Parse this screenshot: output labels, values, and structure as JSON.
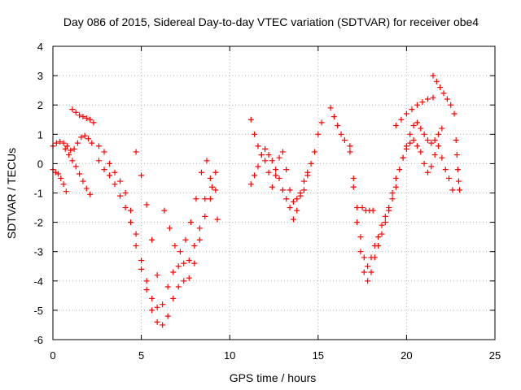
{
  "chart_data": {
    "type": "scatter",
    "title": "Day 086 of 2015, Sidereal Day-to-day VTEC variation (SDTVAR) for receiver obe4",
    "xlabel": "GPS time / hours",
    "ylabel": "SDTVAR / TECUs",
    "xlim": [
      0,
      25
    ],
    "ylim": [
      -6,
      4
    ],
    "xticks": [
      0,
      5,
      10,
      15,
      20,
      25
    ],
    "yticks": [
      -6,
      -5,
      -4,
      -3,
      -2,
      -1,
      0,
      1,
      2,
      3,
      4
    ],
    "xtick_labels": [
      "0",
      "5",
      "10",
      "15",
      "20",
      "25"
    ],
    "ytick_labels": [
      "-6",
      "-5",
      "-4",
      "-3",
      "-2",
      "-1",
      "0",
      "1",
      "2",
      "3",
      "4"
    ],
    "grid": true,
    "marker": "plus",
    "color": "#ff0000",
    "series": [
      {
        "name": "seg-a1",
        "x": [
          0,
          0.2,
          0.4,
          0.6,
          0.8,
          1.0,
          1.2,
          1.4,
          1.6,
          1.8,
          2.0,
          2.2
        ],
        "y": [
          0.6,
          0.7,
          0.75,
          0.7,
          0.6,
          0.45,
          0.5,
          0.7,
          0.9,
          0.95,
          0.85,
          0.7
        ]
      },
      {
        "name": "seg-a2",
        "x": [
          0,
          0.15,
          0.3,
          0.45,
          0.6,
          0.75
        ],
        "y": [
          -0.2,
          -0.3,
          -0.35,
          -0.5,
          -0.7,
          -0.95
        ]
      },
      {
        "name": "seg-a3",
        "x": [
          1.1,
          1.3,
          1.5,
          1.7,
          1.9,
          2.1,
          2.3
        ],
        "y": [
          1.85,
          1.75,
          1.65,
          1.6,
          1.55,
          1.5,
          1.4
        ]
      },
      {
        "name": "seg-a4",
        "x": [
          0.7,
          0.9,
          1.1,
          1.3,
          1.5,
          1.7,
          1.9,
          2.1
        ],
        "y": [
          0.5,
          0.3,
          0.1,
          -0.1,
          -0.35,
          -0.6,
          -0.85,
          -1.05
        ]
      },
      {
        "name": "seg-b1",
        "x": [
          2.6,
          2.9,
          3.2,
          3.5,
          3.8,
          4.1,
          4.4,
          4.7,
          5.0,
          5.3,
          5.6,
          5.9,
          6.2,
          6.5,
          6.8,
          7.1,
          7.4,
          7.7,
          8.0,
          8.3,
          8.6,
          8.9,
          9.2
        ],
        "y": [
          0.6,
          0.4,
          0.0,
          -0.3,
          -0.6,
          -1.0,
          -1.6,
          -2.4,
          -3.3,
          -4.0,
          -4.6,
          -4.9,
          -4.8,
          -4.2,
          -3.7,
          -3.5,
          -3.4,
          -3.3,
          -2.8,
          -2.2,
          -1.2,
          -0.5,
          -0.3
        ]
      },
      {
        "name": "seg-b2",
        "x": [
          2.6,
          2.9,
          3.2,
          3.5,
          3.8,
          4.1,
          4.4,
          4.7,
          5.0,
          5.3,
          5.6,
          5.9,
          6.2,
          6.5,
          6.8,
          7.1,
          7.4,
          7.7,
          8.0,
          8.3,
          8.6,
          8.9,
          9.2
        ],
        "y": [
          0.1,
          -0.2,
          -0.4,
          -0.7,
          -1.1,
          -1.5,
          -2.0,
          -2.8,
          -3.6,
          -4.3,
          -5.0,
          -5.4,
          -5.5,
          -5.2,
          -4.6,
          -4.2,
          -4.0,
          -3.9,
          -3.4,
          -2.6,
          -1.8,
          -1.2,
          -0.9
        ]
      },
      {
        "name": "seg-b3",
        "x": [
          4.7,
          5.0,
          5.3,
          5.6,
          5.9
        ],
        "y": [
          0.4,
          -0.4,
          -1.4,
          -2.6,
          -3.8
        ]
      },
      {
        "name": "seg-b4",
        "x": [
          6.3,
          6.6,
          6.9,
          7.2,
          7.5,
          7.8,
          8.1,
          8.4,
          8.7,
          9.0,
          9.3
        ],
        "y": [
          -1.6,
          -2.2,
          -2.8,
          -3.0,
          -2.6,
          -2.0,
          -1.2,
          -0.3,
          0.1,
          -0.8,
          -1.9
        ]
      },
      {
        "name": "seg-c1",
        "x": [
          11.2,
          11.4,
          11.6,
          11.8,
          12.0,
          12.2,
          12.4,
          12.6,
          12.8,
          13.0,
          13.2,
          13.4,
          13.6,
          13.8,
          14.0,
          14.2,
          14.4,
          14.6,
          14.8,
          15.0,
          15.2
        ],
        "y": [
          1.5,
          1.0,
          0.6,
          0.3,
          0.1,
          0.3,
          0.1,
          -0.2,
          -0.5,
          -0.9,
          -1.2,
          -1.5,
          -1.9,
          -1.6,
          -1.0,
          -0.6,
          -0.3,
          0.0,
          0.4,
          1.0,
          1.4
        ]
      },
      {
        "name": "seg-c2",
        "x": [
          11.2,
          11.4,
          11.6,
          11.8,
          12.0,
          12.2,
          12.4,
          12.6,
          12.8,
          13.0,
          13.2,
          13.4,
          13.6,
          13.8,
          14.0,
          14.2,
          14.4
        ],
        "y": [
          -0.7,
          -0.4,
          -0.1,
          0.3,
          0.5,
          -0.3,
          -0.8,
          -0.4,
          0.2,
          0.4,
          -0.2,
          -0.9,
          -1.3,
          -1.2,
          -1.1,
          -0.9,
          -0.4
        ]
      },
      {
        "name": "seg-d1",
        "x": [
          15.7,
          15.9,
          16.1,
          16.3,
          16.5
        ],
        "y": [
          1.9,
          1.6,
          1.3,
          1.0,
          0.8
        ]
      },
      {
        "name": "seg-d2",
        "x": [
          16.8,
          17.0,
          17.2,
          17.4,
          17.6,
          17.8,
          18.0,
          18.2,
          18.4,
          18.6,
          18.8,
          19.0,
          19.2
        ],
        "y": [
          0.6,
          -0.5,
          -1.5,
          -2.5,
          -3.2,
          -3.5,
          -3.2,
          -2.8,
          -2.5,
          -2.1,
          -1.8,
          -1.5,
          -1.0
        ]
      },
      {
        "name": "seg-d3",
        "x": [
          16.8,
          17.0,
          17.2,
          17.4,
          17.6,
          17.8,
          18.0,
          18.2,
          18.4,
          18.6,
          18.8,
          19.0,
          19.2,
          19.4
        ],
        "y": [
          0.4,
          -0.8,
          -2.0,
          -3.0,
          -3.7,
          -4.0,
          -3.7,
          -3.2,
          -2.8,
          -2.4,
          -2.0,
          -1.6,
          -1.2,
          -0.8
        ]
      },
      {
        "name": "seg-d4",
        "x": [
          17.5,
          17.7,
          17.9,
          18.1
        ],
        "y": [
          -1.5,
          -1.6,
          -1.6,
          -1.6
        ]
      },
      {
        "name": "seg-e1",
        "x": [
          19.4,
          19.7,
          20.0,
          20.3,
          20.6,
          20.9,
          21.2,
          21.5
        ],
        "y": [
          1.3,
          1.5,
          1.7,
          1.85,
          2.0,
          2.1,
          2.2,
          2.25
        ]
      },
      {
        "name": "seg-e2",
        "x": [
          21.5,
          21.7,
          21.9,
          22.1,
          22.3,
          22.5,
          22.7
        ],
        "y": [
          3.0,
          2.8,
          2.6,
          2.4,
          2.2,
          2.0,
          1.7
        ]
      },
      {
        "name": "seg-e3",
        "x": [
          19.4,
          19.6,
          19.8,
          20.0,
          20.2,
          20.4,
          20.6,
          20.8,
          21.0,
          21.2,
          21.4,
          21.6,
          21.8,
          22.0
        ],
        "y": [
          -0.5,
          -0.2,
          0.2,
          0.6,
          1.0,
          1.3,
          1.4,
          1.2,
          1.0,
          0.8,
          0.7,
          0.8,
          1.0,
          1.2
        ]
      },
      {
        "name": "seg-e4",
        "x": [
          19.8,
          20.0,
          20.2,
          20.4,
          20.6,
          20.8,
          21.0,
          21.2,
          21.4,
          21.6,
          21.8,
          22.0,
          22.2,
          22.4,
          22.6
        ],
        "y": [
          0.2,
          0.5,
          0.7,
          0.8,
          0.6,
          0.4,
          0.0,
          -0.3,
          -0.1,
          0.3,
          0.6,
          0.2,
          -0.2,
          -0.5,
          -0.9
        ]
      },
      {
        "name": "seg-e5",
        "x": [
          22.8,
          22.85,
          22.9,
          22.95,
          23.0
        ],
        "y": [
          0.8,
          0.3,
          -0.2,
          -0.6,
          -0.9
        ]
      }
    ]
  }
}
